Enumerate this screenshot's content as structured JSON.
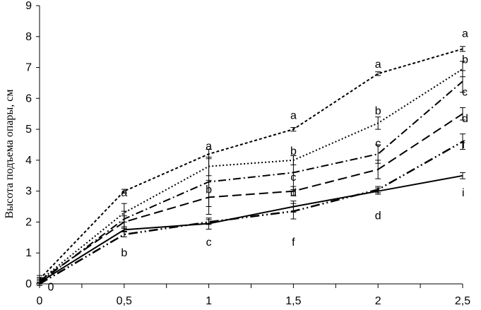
{
  "chart_data": {
    "type": "line",
    "title": "",
    "xlabel": "",
    "ylabel": "Высота подъема опары, см",
    "x": [
      0,
      0.5,
      1,
      1.5,
      2,
      2.5
    ],
    "x_tick_labels": [
      "0",
      "0,5",
      "1",
      "1,5",
      "2",
      "2,5"
    ],
    "y_tick_labels": [
      "0",
      "1",
      "2",
      "3",
      "4",
      "5",
      "6",
      "7",
      "8",
      "9"
    ],
    "xlim": [
      0,
      2.5
    ],
    "ylim": [
      0,
      9
    ],
    "grid": false,
    "legend": "none",
    "series": [
      {
        "dash": "4,3",
        "width": 2,
        "values": [
          0.15,
          3.0,
          4.2,
          5.0,
          6.8,
          7.6
        ],
        "errors": [
          0.12,
          0.06,
          0.15,
          0.06,
          0.06,
          0.08
        ]
      },
      {
        "dash": "2,3",
        "width": 2,
        "values": [
          0.1,
          2.3,
          3.8,
          4.0,
          5.2,
          6.95
        ],
        "errors": [
          0.1,
          0.3,
          0.3,
          0.15,
          0.2,
          0.25
        ]
      },
      {
        "dash": "11,4,2,4",
        "width": 2,
        "values": [
          0.05,
          2.1,
          3.3,
          3.6,
          4.2,
          6.55
        ],
        "errors": [
          0.1,
          0.25,
          0.8,
          0.55,
          0.3,
          0.35
        ]
      },
      {
        "dash": "13,6",
        "width": 2,
        "values": [
          0.1,
          2.0,
          2.8,
          3.0,
          3.7,
          5.5
        ],
        "errors": [
          0.1,
          0.2,
          0.55,
          0.15,
          0.3,
          0.2
        ]
      },
      {
        "dash": "13,4,2,4,2,4",
        "width": 2.5,
        "values": [
          0.0,
          1.6,
          2.0,
          2.35,
          3.05,
          4.6
        ],
        "errors": [
          0.05,
          0.08,
          0.08,
          0.25,
          0.1,
          0.25
        ]
      },
      {
        "dash": "",
        "width": 2,
        "values": [
          0.05,
          1.75,
          1.95,
          2.5,
          3.0,
          3.5
        ],
        "errors": [
          0.05,
          0.05,
          0.18,
          0.18,
          0.1,
          0.1
        ]
      }
    ],
    "annotations": [
      {
        "text": "a",
        "x": 0.5,
        "y": 2.95
      },
      {
        "text": "a",
        "x": 1,
        "y": 4.45
      },
      {
        "text": "a",
        "x": 1.5,
        "y": 5.45
      },
      {
        "text": "a",
        "x": 2,
        "y": 7.1
      },
      {
        "text": "a",
        "x": 2.5,
        "y": 8.1
      },
      {
        "text": "b",
        "x": 1.5,
        "y": 4.3
      },
      {
        "text": "b",
        "x": 2,
        "y": 5.6
      },
      {
        "text": "b",
        "x": 2.5,
        "y": 7.25
      },
      {
        "text": "c",
        "x": 1.5,
        "y": 3.45
      },
      {
        "text": "c",
        "x": 2,
        "y": 4.55
      },
      {
        "text": "c",
        "x": 2.5,
        "y": 6.2
      },
      {
        "text": "b",
        "x": 1,
        "y": 3.05
      },
      {
        "text": "d",
        "x": 1.5,
        "y": 2.95
      },
      {
        "text": "d",
        "x": 2.5,
        "y": 5.35
      },
      {
        "text": "b",
        "x": 0.5,
        "y": 1.0
      },
      {
        "text": "c",
        "x": 1,
        "y": 1.35
      },
      {
        "text": "f",
        "x": 1.5,
        "y": 1.35
      },
      {
        "text": "d",
        "x": 2,
        "y": 2.2
      },
      {
        "text": "f",
        "x": 2.5,
        "y": 4.5
      },
      {
        "text": "i",
        "x": 2.5,
        "y": 2.95
      },
      {
        "text": "0",
        "x": 0,
        "y": -0.1
      }
    ]
  }
}
